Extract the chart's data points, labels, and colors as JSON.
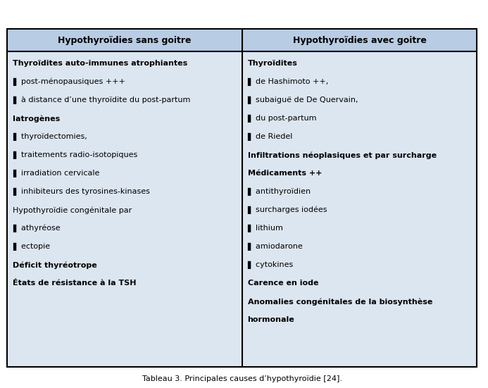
{
  "header_bg": "#b8cce4",
  "body_bg": "#dce6f1",
  "border_color": "#000000",
  "header_text_color": "#000000",
  "body_text_color": "#000000",
  "col1_header": "Hypothyroïdies sans goitre",
  "col2_header": "Hypothyroïdies avec goitre",
  "col1_lines": [
    {
      "text": "Thyroïdites auto-immunes atrophiantes",
      "bold": true
    },
    {
      "text": ""
    },
    {
      "text": "▌ post-ménopausiques +++",
      "bold": false
    },
    {
      "text": ""
    },
    {
      "text": "▌ à distance d’une thyroïdite du post-partum",
      "bold": false
    },
    {
      "text": ""
    },
    {
      "text": "Iatrogènes",
      "bold": true
    },
    {
      "text": ""
    },
    {
      "text": "▌ thyroïdectomies,",
      "bold": false
    },
    {
      "text": ""
    },
    {
      "text": "▌ traitements radio-isotopiques",
      "bold": false
    },
    {
      "text": ""
    },
    {
      "text": "▌ irradiation cervicale",
      "bold": false
    },
    {
      "text": ""
    },
    {
      "text": "▌ inhibiteurs des tyrosines-kinases",
      "bold": false
    },
    {
      "text": ""
    },
    {
      "text": "Hypothyroïdie congénitale par",
      "bold": false
    },
    {
      "text": ""
    },
    {
      "text": "▌ athyréose",
      "bold": false
    },
    {
      "text": ""
    },
    {
      "text": "▌ ectopie",
      "bold": false
    },
    {
      "text": ""
    },
    {
      "text": "Déficit thyréotrope",
      "bold": true
    },
    {
      "text": ""
    },
    {
      "text": "États de résistance à la TSH",
      "bold": true
    }
  ],
  "col2_lines": [
    {
      "text": "Thyroïdites",
      "bold": true
    },
    {
      "text": ""
    },
    {
      "text": "▌ de Hashimoto ++,",
      "bold": false
    },
    {
      "text": ""
    },
    {
      "text": "▌ subaiguë de De Quervain,",
      "bold": false
    },
    {
      "text": ""
    },
    {
      "text": "▌ du post-partum",
      "bold": false
    },
    {
      "text": ""
    },
    {
      "text": "▌ de Riedel",
      "bold": false
    },
    {
      "text": ""
    },
    {
      "text": "Infiltrations néoplasiques et par surcharge",
      "bold": true
    },
    {
      "text": ""
    },
    {
      "text": "Médicaments ++",
      "bold": true
    },
    {
      "text": ""
    },
    {
      "text": "▌ antithyroïdien",
      "bold": false
    },
    {
      "text": ""
    },
    {
      "text": "▌ surcharges iodées",
      "bold": false
    },
    {
      "text": ""
    },
    {
      "text": "▌ lithium",
      "bold": false
    },
    {
      "text": ""
    },
    {
      "text": "▌ amiodarone",
      "bold": false
    },
    {
      "text": ""
    },
    {
      "text": "▌ cytokines",
      "bold": false
    },
    {
      "text": ""
    },
    {
      "text": "Carence en iode",
      "bold": true
    },
    {
      "text": ""
    },
    {
      "text": "Anomalies congénitales de la biosynthèse",
      "bold": true
    },
    {
      "text": ""
    },
    {
      "text": "hormonale",
      "bold": true
    }
  ],
  "caption": "Tableau 3. Principales causes d’hypothyroïdie [24].",
  "figsize": [
    6.93,
    5.51
  ],
  "dpi": 100
}
